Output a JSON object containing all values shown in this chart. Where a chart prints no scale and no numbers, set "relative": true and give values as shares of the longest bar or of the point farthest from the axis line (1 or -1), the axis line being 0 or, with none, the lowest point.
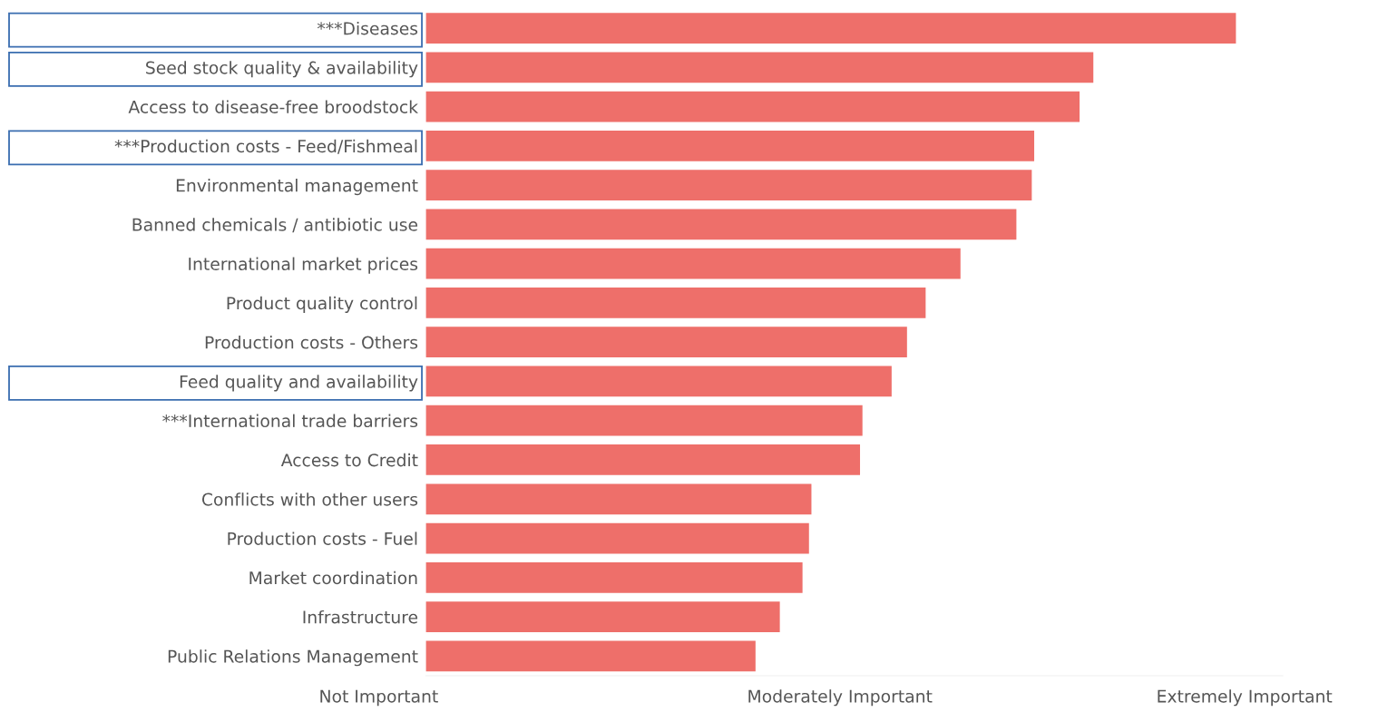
{
  "chart_data": {
    "type": "bar",
    "orientation": "horizontal",
    "relative": true,
    "categories": [
      "***Diseases",
      "Seed stock quality & availability",
      "Access to disease-free broodstock",
      "***Production costs - Feed/Fishmeal",
      "Environmental management",
      "Banned chemicals / antibiotic use",
      "International market prices",
      "Product quality control",
      "Production costs - Others",
      "Feed quality and availability",
      "***International trade barriers",
      "Access to Credit",
      "Conflicts with other users",
      "Production costs - Fuel",
      "Market coordination",
      "Infrastructure",
      "Public Relations Management"
    ],
    "values": [
      1.0,
      0.824,
      0.807,
      0.751,
      0.748,
      0.729,
      0.66,
      0.617,
      0.594,
      0.575,
      0.539,
      0.536,
      0.476,
      0.473,
      0.465,
      0.437,
      0.407
    ],
    "color": "#ee6f6a",
    "annotations": [
      "Not Important",
      "Moderately Important",
      "Extremely Important"
    ],
    "legend": false
  }
}
